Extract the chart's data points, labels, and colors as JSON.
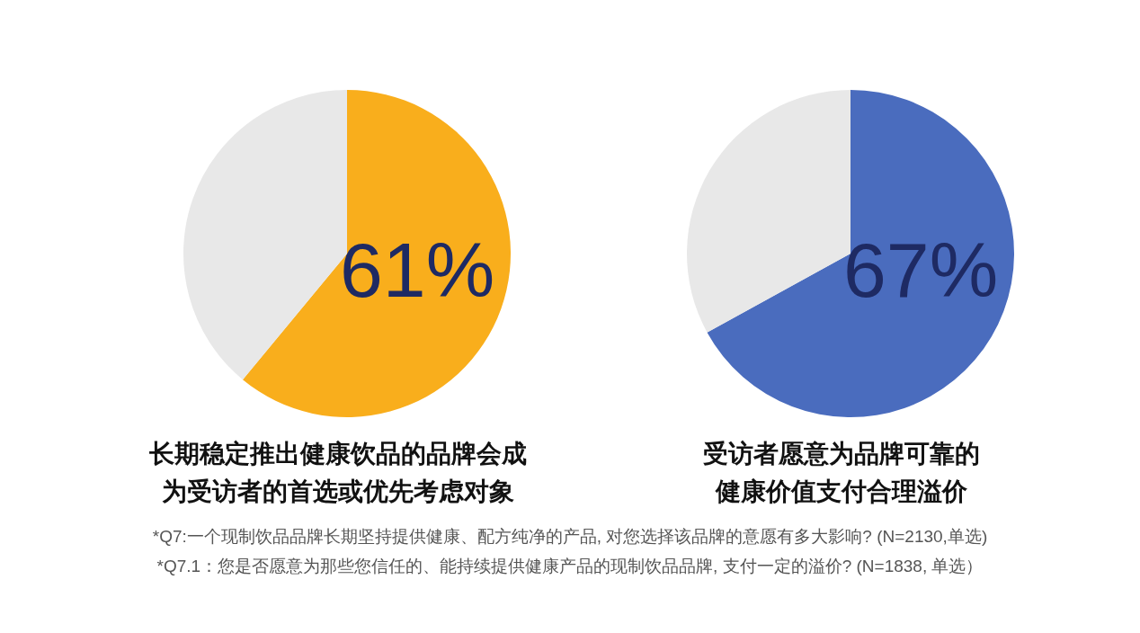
{
  "chart_data": [
    {
      "type": "pie",
      "title": "长期稳定推出健康饮品的品牌会成为受访者的首选或优先考虑对象",
      "categories": [
        null,
        null
      ],
      "values": [
        61,
        39
      ],
      "colors": [
        "#F9AE1C",
        "#E8E8E8"
      ],
      "value_labels": [
        "61%",
        null
      ],
      "annotations": [
        "*Q7:一个现制饮品品牌长期坚持提供健康、配方纯净的产品, 对您选择该品牌的意愿有多大影响? (N=2130,单选)"
      ]
    },
    {
      "type": "pie",
      "title": "受访者愿意为品牌可靠的健康价值支付合理溢价",
      "categories": [
        null,
        null
      ],
      "values": [
        67,
        33
      ],
      "colors": [
        "#4A6CBE",
        "#E8E8E8"
      ],
      "value_labels": [
        "67%",
        null
      ],
      "annotations": [
        "*Q7.1：您是否愿意为那些您信任的、能持续提供健康产品的现制饮品品牌, 支付一定的溢价? (N=1838, 单选）"
      ]
    }
  ]
}
